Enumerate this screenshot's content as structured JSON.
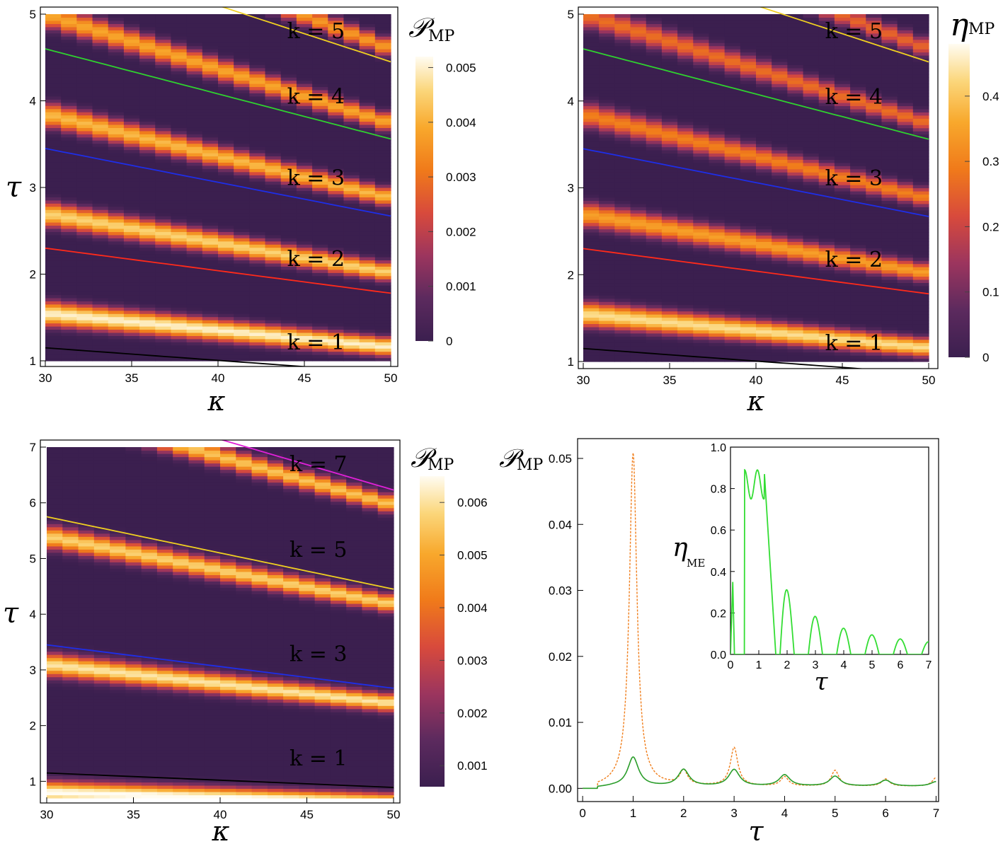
{
  "chart_data": [
    {
      "type": "heatmap",
      "colorbar_label": "𝒫",
      "colorbar_sub": "MP",
      "xlabel": "κ",
      "ylabel": "τ",
      "xlim": [
        30,
        50
      ],
      "ylim": [
        1,
        5
      ],
      "xticks": [
        "30",
        "35",
        "40",
        "45",
        "50"
      ],
      "yticks": [
        "1",
        "2",
        "3",
        "4",
        "5"
      ],
      "colorbar_ticks": [
        "0",
        "0.001",
        "0.002",
        "0.003",
        "0.004",
        "0.005"
      ],
      "colorbar_range": [
        0,
        0.0052
      ],
      "curves": [
        {
          "label": "k = 1",
          "color": "#000000",
          "tau_at_30": 1.15,
          "tau_at_50": 0.86
        },
        {
          "label": "k = 2",
          "color": "#ff2a1a",
          "tau_at_30": 2.3,
          "tau_at_50": 1.78
        },
        {
          "label": "k = 3",
          "color": "#1e2ee8",
          "tau_at_30": 3.45,
          "tau_at_50": 2.67
        },
        {
          "label": "k = 4",
          "color": "#2fd12f",
          "tau_at_30": 4.6,
          "tau_at_50": 3.56
        },
        {
          "label": "k = 5",
          "color": "#f0d020",
          "tau_at_30": 5.75,
          "tau_at_50": 4.45
        }
      ]
    },
    {
      "type": "heatmap",
      "colorbar_label": "η",
      "colorbar_sub": "MP",
      "xlabel": "κ",
      "ylabel": "",
      "xlim": [
        30,
        50
      ],
      "ylim": [
        1,
        5
      ],
      "xticks": [
        "30",
        "35",
        "40",
        "45",
        "50"
      ],
      "yticks": [
        "1",
        "2",
        "3",
        "4",
        "5"
      ],
      "colorbar_ticks": [
        "0",
        "0.1",
        "0.2",
        "0.3",
        "0.4"
      ],
      "colorbar_range": [
        0,
        0.48
      ],
      "curves": [
        {
          "label": "k = 1",
          "color": "#000000",
          "tau_at_30": 1.15,
          "tau_at_50": 0.86
        },
        {
          "label": "k = 2",
          "color": "#ff2a1a",
          "tau_at_30": 2.3,
          "tau_at_50": 1.78
        },
        {
          "label": "k = 3",
          "color": "#1e2ee8",
          "tau_at_30": 3.45,
          "tau_at_50": 2.67
        },
        {
          "label": "k = 4",
          "color": "#2fd12f",
          "tau_at_30": 4.6,
          "tau_at_50": 3.56
        },
        {
          "label": "k = 5",
          "color": "#f0d020",
          "tau_at_30": 5.75,
          "tau_at_50": 4.45
        }
      ]
    },
    {
      "type": "heatmap",
      "colorbar_label": "𝒫",
      "colorbar_sub": "MP",
      "xlabel": "κ",
      "ylabel": "τ",
      "xlim": [
        30,
        50
      ],
      "ylim": [
        0.7,
        7
      ],
      "xticks": [
        "30",
        "35",
        "40",
        "45",
        "50"
      ],
      "yticks": [
        "1",
        "2",
        "3",
        "4",
        "5",
        "6",
        "7"
      ],
      "colorbar_ticks": [
        "0.001",
        "0.002",
        "0.003",
        "0.004",
        "0.005",
        "0.006"
      ],
      "colorbar_range": [
        0.0006,
        0.0065
      ],
      "curves": [
        {
          "label": "k = 1",
          "color": "#000000",
          "tau_at_30": 1.15,
          "tau_at_50": 0.89
        },
        {
          "label": "k = 3",
          "color": "#1e2ee8",
          "tau_at_30": 3.45,
          "tau_at_50": 2.67
        },
        {
          "label": "k = 5",
          "color": "#f0d020",
          "tau_at_30": 5.75,
          "tau_at_50": 4.45
        },
        {
          "label": "k = 7",
          "color": "#e020d8",
          "tau_at_30": 8.05,
          "tau_at_50": 6.23
        }
      ]
    },
    {
      "type": "line",
      "ylabel": "𝒫",
      "ylabel_sub": "MP",
      "xlabel": "τ",
      "xlim": [
        -0.1,
        7.05
      ],
      "ylim": [
        -0.002,
        0.053
      ],
      "xticks": [
        "0",
        "1",
        "2",
        "3",
        "4",
        "5",
        "6",
        "7"
      ],
      "yticks": [
        "0.00",
        "0.01",
        "0.02",
        "0.03",
        "0.04",
        "0.05"
      ],
      "series": [
        {
          "style": "dotted",
          "color": "#f07d1a",
          "peaks": [
            [
              1,
              0.0505
            ],
            [
              2,
              0.0022
            ],
            [
              3,
              0.0058
            ],
            [
              4,
              0.0014
            ],
            [
              5,
              0.0024
            ],
            [
              6,
              0.0011
            ],
            [
              7,
              0.0013
            ]
          ]
        },
        {
          "style": "solid",
          "color": "#2a9d2a",
          "peaks": [
            [
              1,
              0.0044
            ],
            [
              2,
              0.0025
            ],
            [
              3,
              0.0025
            ],
            [
              4,
              0.0017
            ],
            [
              5,
              0.0015
            ],
            [
              6,
              0.0009
            ],
            [
              7,
              0.0007
            ]
          ]
        }
      ],
      "inset": {
        "type": "line",
        "ylabel": "η",
        "ylabel_sub": "ME",
        "xlabel": "τ",
        "xlim": [
          0,
          7
        ],
        "ylim": [
          0,
          1
        ],
        "xticks": [
          "0",
          "1",
          "2",
          "3",
          "4",
          "5",
          "6",
          "7"
        ],
        "yticks": [
          "0.0",
          "0.2",
          "0.4",
          "0.6",
          "0.8",
          "1.0"
        ],
        "color": "#33dd33",
        "peaks": [
          [
            0.5,
            0.91
          ],
          [
            0.7,
            0.76
          ],
          [
            1,
            0.87
          ],
          [
            2,
            0.31
          ],
          [
            3,
            0.25
          ],
          [
            4,
            0.12
          ],
          [
            5,
            0.09
          ],
          [
            6,
            0.04
          ],
          [
            7,
            0.03
          ]
        ]
      }
    }
  ]
}
